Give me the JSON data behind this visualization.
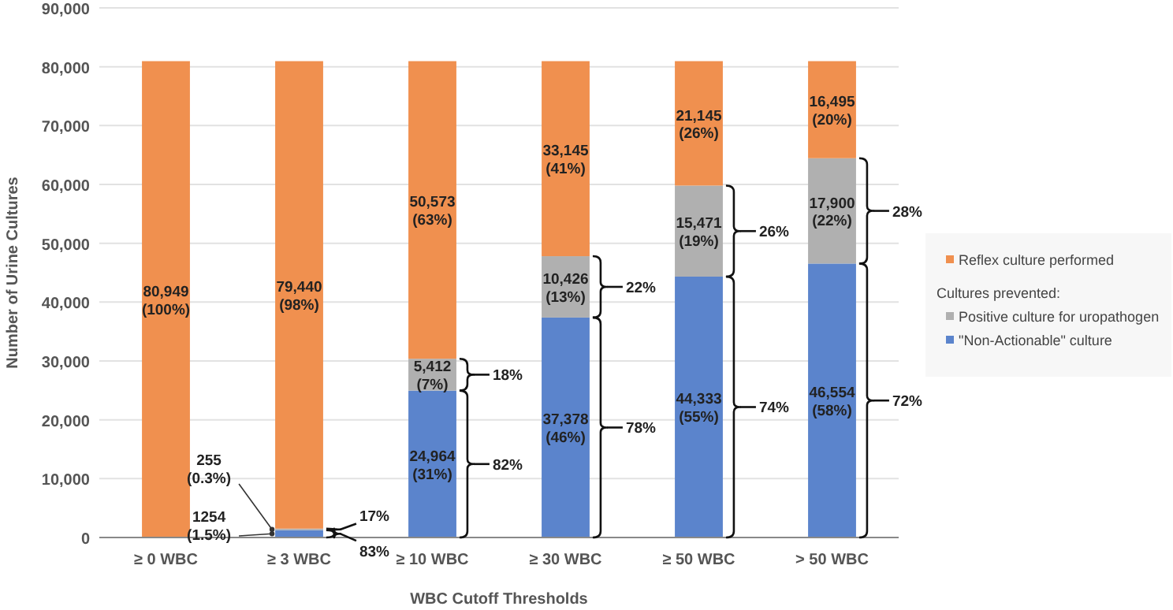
{
  "chart_data": {
    "type": "bar",
    "stacked": true,
    "xlabel": "WBC Cutoff Thresholds",
    "ylabel": "Number of Urine Cultures",
    "categories": [
      "≥ 0 WBC",
      "≥ 3 WBC",
      "≥ 10 WBC",
      "≥ 30 WBC",
      "≥ 50 WBC",
      "> 50 WBC"
    ],
    "series": [
      {
        "name": "\"Non-Actionable\" culture",
        "color": "#5b84cc",
        "values": [
          null,
          1254,
          24964,
          37378,
          44333,
          46554
        ],
        "value_labels": [
          null,
          "1254 (1.5%)",
          "24,964 (31%)",
          "37,378 (46%)",
          "44,333 (55%)",
          "46,554 (58%)"
        ]
      },
      {
        "name": "Positive culture for uropathogen",
        "color": "#b0b0b0",
        "values": [
          null,
          255,
          5412,
          10426,
          15471,
          17900
        ],
        "value_labels": [
          null,
          "255 (0.3%)",
          "5,412 (7%)",
          "10,426 (13%)",
          "15,471 (19%)",
          "17,900 (22%)"
        ]
      },
      {
        "name": "Reflex culture performed",
        "color": "#f0904f",
        "values": [
          80949,
          79440,
          50573,
          33145,
          21145,
          16495
        ],
        "value_labels": [
          "80,949 (100%)",
          "79,440 (98%)",
          "50,573 (63%)",
          "33,145 (41%)",
          "21,145 (26%)",
          "16,495 (20%)"
        ]
      }
    ],
    "legend_title": "Cultures prevented:",
    "legend": "right",
    "grid": "y",
    "ylim": [
      0,
      90000
    ],
    "yticks": [
      {
        "value": 0,
        "label": "0"
      },
      {
        "value": 10000,
        "label": "10,000"
      },
      {
        "value": 20000,
        "label": "20,000"
      },
      {
        "value": 30000,
        "label": "30,000"
      },
      {
        "value": 40000,
        "label": "40,000"
      },
      {
        "value": 50000,
        "label": "50,000"
      },
      {
        "value": 60000,
        "label": "60,000"
      },
      {
        "value": 70000,
        "label": "70,000"
      },
      {
        "value": 80000,
        "label": "80,000"
      },
      {
        "value": 90000,
        "label": "90,000"
      }
    ],
    "annotations": [
      "17%",
      "83%",
      "18%",
      "82%",
      "22%",
      "78%",
      "26%",
      "74%",
      "28%",
      "72%"
    ]
  }
}
